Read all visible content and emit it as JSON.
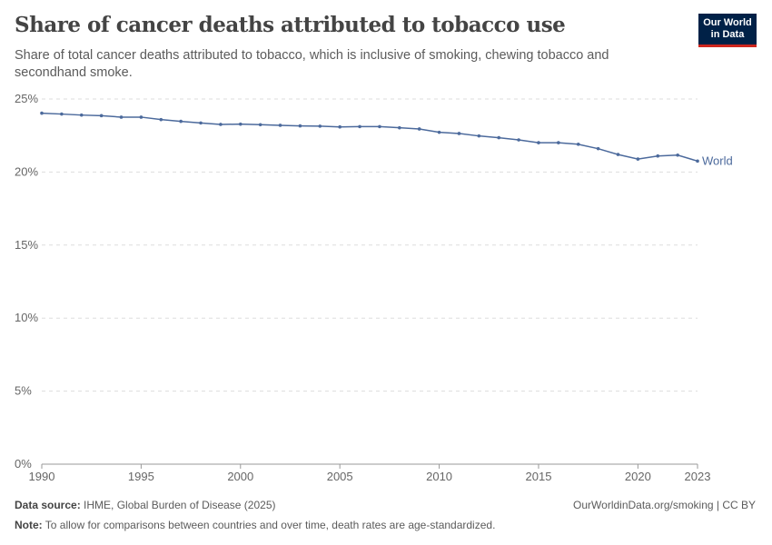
{
  "header": {
    "title": "Share of cancer deaths attributed to tobacco use",
    "subtitle": "Share of total cancer deaths attributed to tobacco, which is inclusive of smoking, chewing tobacco and secondhand smoke.",
    "logo_text": "Our World in Data"
  },
  "footer": {
    "source_label": "Data source:",
    "source": "IHME, Global Burden of Disease (2025)",
    "url": "OurWorldinData.org/smoking | CC BY",
    "note_label": "Note:",
    "note": "To allow for comparisons between countries and over time, death rates are age-standardized."
  },
  "chart_data": {
    "type": "line",
    "ylim": [
      0,
      25
    ],
    "xlim": [
      1990,
      2023
    ],
    "yticks": [
      "0%",
      "5%",
      "10%",
      "15%",
      "20%",
      "25%"
    ],
    "xticks": [
      "1990",
      "1995",
      "2000",
      "2005",
      "2010",
      "2015",
      "2020",
      "2023"
    ],
    "grid": "horizontal dashed",
    "series": [
      {
        "name": "World",
        "color": "#4c6a9c",
        "x": [
          1990,
          1991,
          1992,
          1993,
          1994,
          1995,
          1996,
          1997,
          1998,
          1999,
          2000,
          2001,
          2002,
          2003,
          2004,
          2005,
          2006,
          2007,
          2008,
          2009,
          2010,
          2011,
          2012,
          2013,
          2014,
          2015,
          2016,
          2017,
          2018,
          2019,
          2020,
          2021,
          2022,
          2023
        ],
        "values": [
          24.03,
          23.97,
          23.9,
          23.86,
          23.76,
          23.76,
          23.59,
          23.47,
          23.36,
          23.26,
          23.28,
          23.24,
          23.2,
          23.16,
          23.14,
          23.09,
          23.11,
          23.11,
          23.03,
          22.95,
          22.72,
          22.64,
          22.47,
          22.35,
          22.2,
          22.01,
          22.01,
          21.9,
          21.6,
          21.2,
          20.89,
          21.1,
          21.16,
          20.75
        ]
      }
    ]
  }
}
